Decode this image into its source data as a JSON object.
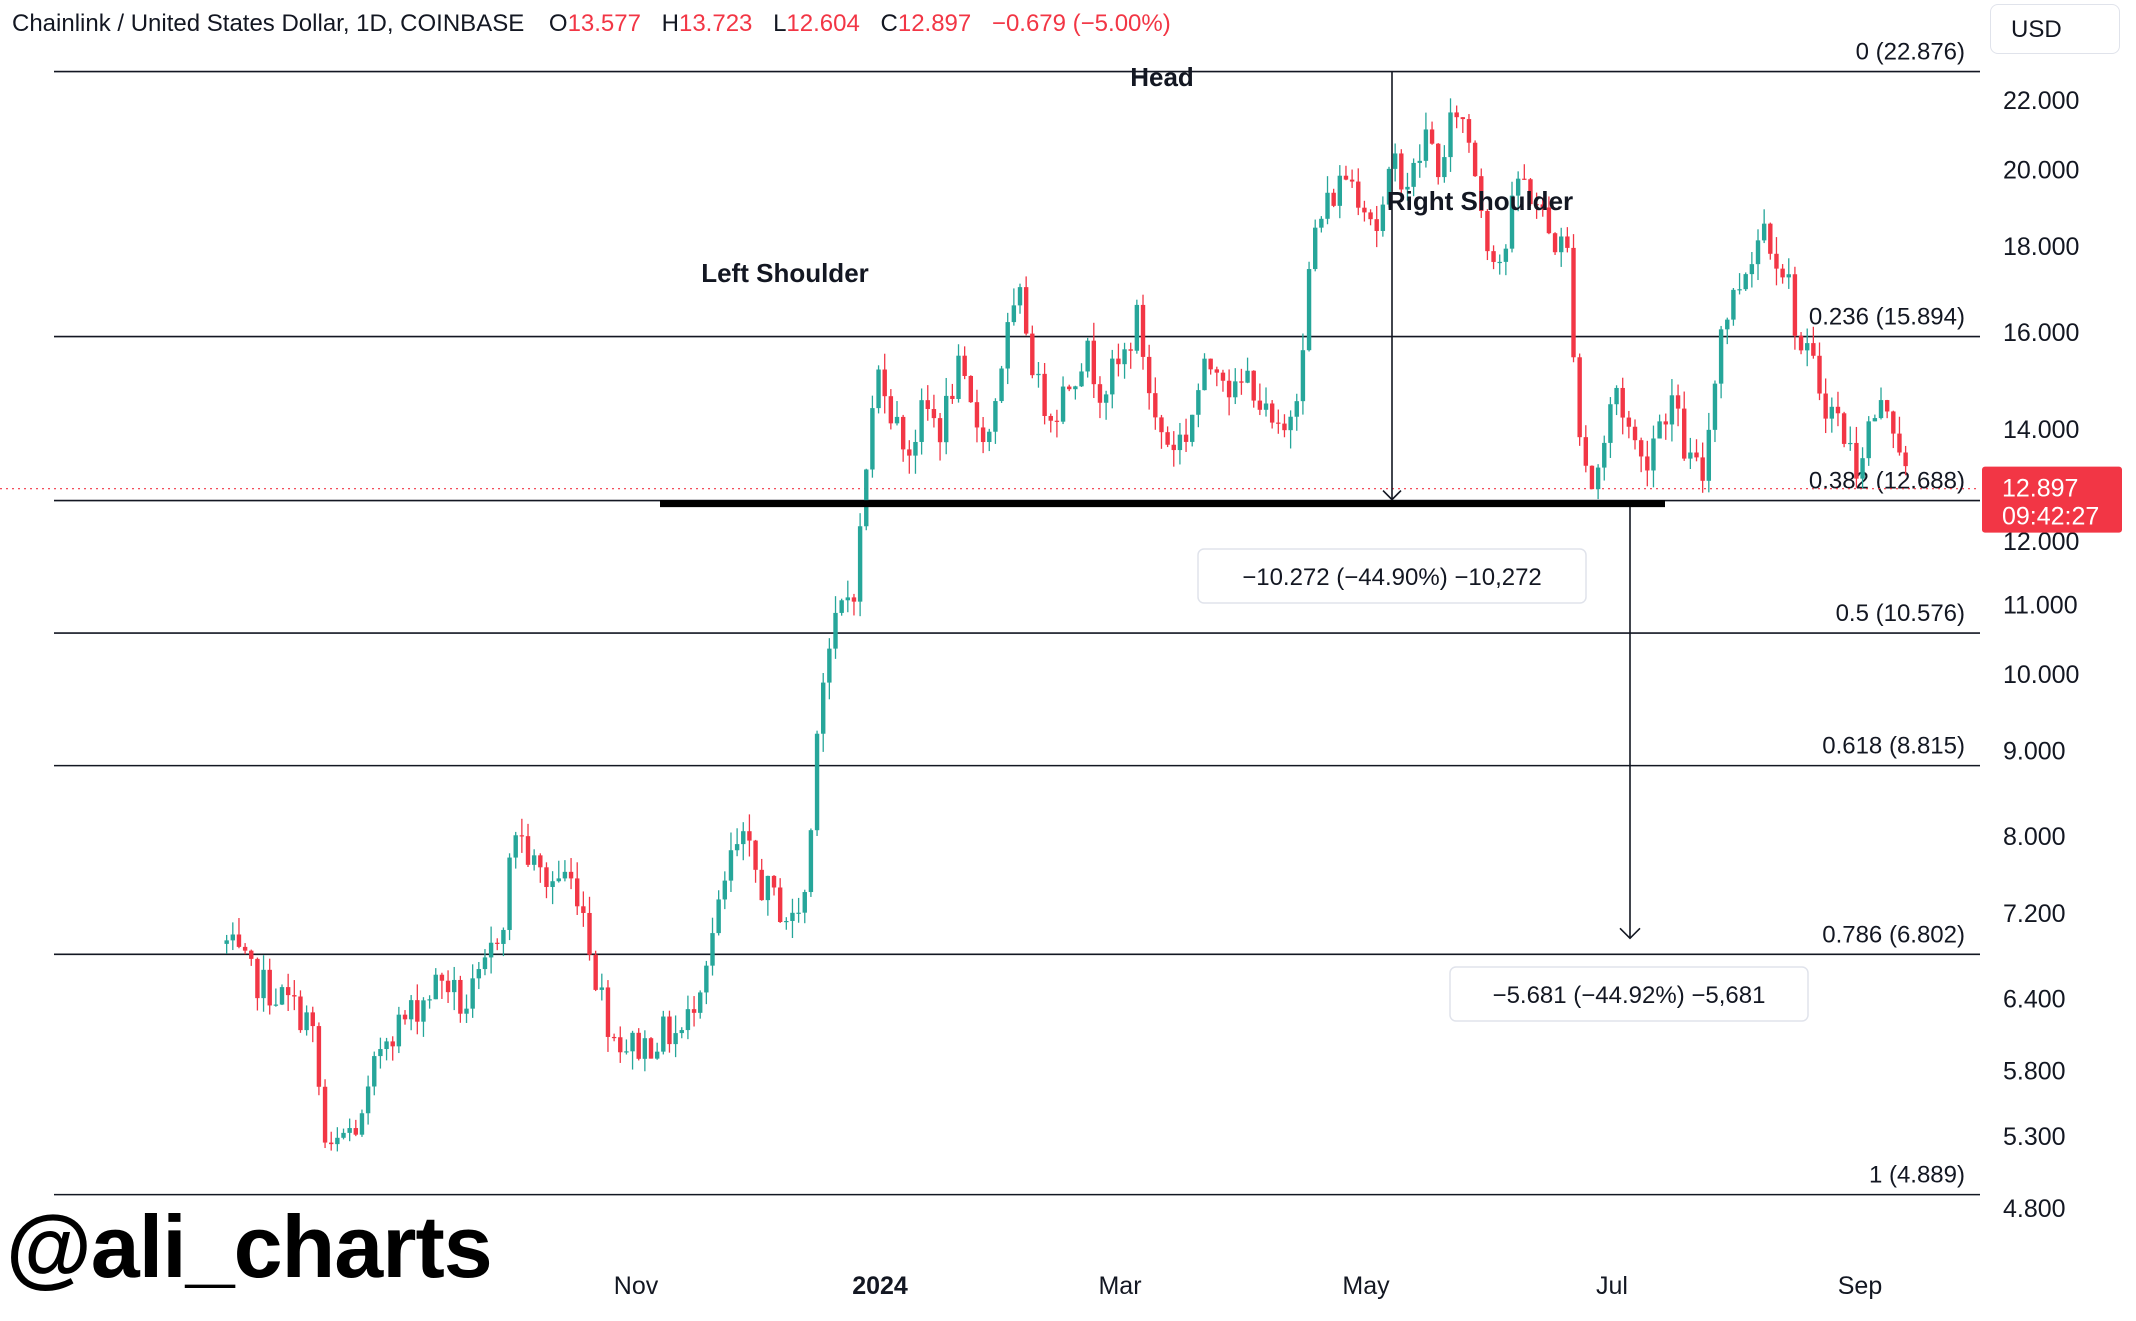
{
  "header": {
    "symbol": "Chainlink / United States Dollar, 1D, COINBASE",
    "open_label": "O",
    "open": "13.577",
    "high_label": "H",
    "high": "13.723",
    "low_label": "L",
    "low": "12.604",
    "close_label": "C",
    "close": "12.897",
    "change": "−0.679 (−5.00%)"
  },
  "currency_button": "USD",
  "watermark": "@ali_charts",
  "colors": {
    "up": "#26a69a",
    "down": "#f23645",
    "line": "#131722",
    "last": "#f23645"
  },
  "chart_data": {
    "type": "candlestick",
    "scale": "log",
    "y_ticks": [
      "22.000",
      "20.000",
      "18.000",
      "16.000",
      "14.000",
      "12.000",
      "11.000",
      "10.000",
      "9.000",
      "8.000",
      "7.200",
      "6.400",
      "5.800",
      "5.300",
      "4.800"
    ],
    "x_ticks": [
      "Nov",
      "2024",
      "Mar",
      "May",
      "Jul",
      "Sep"
    ],
    "last_price": {
      "value": "12.897",
      "timer": "09:42:27"
    },
    "fib_levels": [
      {
        "label": "0 (22.876)",
        "value": 22.876
      },
      {
        "label": "0.236 (15.894)",
        "value": 15.894
      },
      {
        "label": "0.382 (12.688)",
        "value": 12.688
      },
      {
        "label": "0.5 (10.576)",
        "value": 10.576
      },
      {
        "label": "0.618 (8.815)",
        "value": 8.815
      },
      {
        "label": "0.786 (6.802)",
        "value": 6.802
      },
      {
        "label": "1 (4.889)",
        "value": 4.889
      }
    ],
    "annotations": [
      "Head",
      "Left Shoulder",
      "Right Shoulder"
    ],
    "measurements": [
      "−10.272 (−44.90%) −10,272",
      "−5.681 (−44.92%) −5,681"
    ],
    "neckline": 12.688,
    "price_path": [
      [
        "2023-07-22",
        6.9
      ],
      [
        "2023-07-28",
        6.6
      ],
      [
        "2023-08-05",
        6.4
      ],
      [
        "2023-08-12",
        6.2
      ],
      [
        "2023-08-16",
        5.1
      ],
      [
        "2023-08-20",
        5.3
      ],
      [
        "2023-08-25",
        5.4
      ],
      [
        "2023-08-30",
        6.1
      ],
      [
        "2023-09-04",
        6.2
      ],
      [
        "2023-09-09",
        6.4
      ],
      [
        "2023-09-14",
        6.6
      ],
      [
        "2023-09-19",
        6.3
      ],
      [
        "2023-09-24",
        6.6
      ],
      [
        "2023-09-29",
        7.2
      ],
      [
        "2023-10-02",
        8.1
      ],
      [
        "2023-10-06",
        7.7
      ],
      [
        "2023-10-10",
        7.5
      ],
      [
        "2023-10-14",
        7.6
      ],
      [
        "2023-10-18",
        7.4
      ],
      [
        "2023-10-22",
        6.6
      ],
      [
        "2023-10-26",
        6.1
      ],
      [
        "2023-10-30",
        6.0
      ],
      [
        "2023-11-03",
        6.0
      ],
      [
        "2023-11-08",
        6.1
      ],
      [
        "2023-11-13",
        6.1
      ],
      [
        "2023-11-17",
        6.6
      ],
      [
        "2023-11-21",
        7.1
      ],
      [
        "2023-11-25",
        7.8
      ],
      [
        "2023-11-28",
        7.9
      ],
      [
        "2023-12-02",
        7.5
      ],
      [
        "2023-12-06",
        7.3
      ],
      [
        "2023-12-10",
        7.1
      ],
      [
        "2023-12-14",
        7.5
      ],
      [
        "2023-12-16",
        9.4
      ],
      [
        "2023-12-18",
        10.1
      ],
      [
        "2023-12-22",
        10.9
      ],
      [
        "2023-12-26",
        11.4
      ],
      [
        "2023-12-29",
        13.8
      ],
      [
        "2024-01-01",
        15.4
      ],
      [
        "2024-01-04",
        14.2
      ],
      [
        "2024-01-08",
        13.6
      ],
      [
        "2024-01-12",
        14.4
      ],
      [
        "2024-01-16",
        14.0
      ],
      [
        "2024-01-20",
        15.2
      ],
      [
        "2024-01-24",
        14.2
      ],
      [
        "2024-01-28",
        13.9
      ],
      [
        "2024-02-01",
        15.8
      ],
      [
        "2024-02-05",
        16.7
      ],
      [
        "2024-02-09",
        14.8
      ],
      [
        "2024-02-13",
        14.3
      ],
      [
        "2024-02-17",
        15.0
      ],
      [
        "2024-02-21",
        15.6
      ],
      [
        "2024-02-25",
        14.8
      ],
      [
        "2024-03-01",
        15.3
      ],
      [
        "2024-03-05",
        16.3
      ],
      [
        "2024-03-09",
        14.2
      ],
      [
        "2024-03-13",
        13.7
      ],
      [
        "2024-03-17",
        13.9
      ],
      [
        "2024-03-21",
        15.0
      ],
      [
        "2024-03-25",
        15.5
      ],
      [
        "2024-03-29",
        14.6
      ],
      [
        "2024-04-02",
        15.1
      ],
      [
        "2024-04-06",
        14.2
      ],
      [
        "2024-04-10",
        13.7
      ],
      [
        "2024-04-14",
        15.0
      ],
      [
        "2024-04-18",
        18.3
      ],
      [
        "2024-04-22",
        19.2
      ],
      [
        "2024-04-26",
        19.9
      ],
      [
        "2024-04-30",
        19.3
      ],
      [
        "2024-05-04",
        18.4
      ],
      [
        "2024-05-08",
        20.2
      ],
      [
        "2024-05-12",
        19.6
      ],
      [
        "2024-05-16",
        21.0
      ],
      [
        "2024-05-20",
        19.8
      ],
      [
        "2024-05-23",
        21.9
      ],
      [
        "2024-05-27",
        20.7
      ],
      [
        "2024-05-31",
        18.2
      ],
      [
        "2024-06-04",
        17.6
      ],
      [
        "2024-06-08",
        19.8
      ],
      [
        "2024-06-12",
        19.2
      ],
      [
        "2024-06-16",
        18.2
      ],
      [
        "2024-06-20",
        17.9
      ],
      [
        "2024-06-23",
        14.0
      ],
      [
        "2024-06-26",
        12.9
      ],
      [
        "2024-06-29",
        13.6
      ],
      [
        "2024-07-02",
        14.9
      ],
      [
        "2024-07-05",
        14.1
      ],
      [
        "2024-07-09",
        13.3
      ],
      [
        "2024-07-12",
        14.0
      ],
      [
        "2024-07-16",
        14.6
      ],
      [
        "2024-07-20",
        13.4
      ],
      [
        "2024-07-24",
        13.1
      ],
      [
        "2024-07-28",
        16.0
      ],
      [
        "2024-08-01",
        16.9
      ],
      [
        "2024-08-04",
        17.6
      ],
      [
        "2024-08-08",
        18.6
      ],
      [
        "2024-08-11",
        17.9
      ],
      [
        "2024-08-14",
        17.2
      ],
      [
        "2024-08-17",
        15.6
      ],
      [
        "2024-08-20",
        15.3
      ],
      [
        "2024-08-23",
        14.6
      ],
      [
        "2024-08-27",
        14.1
      ],
      [
        "2024-08-31",
        13.3
      ],
      [
        "2024-09-04",
        14.2
      ],
      [
        "2024-09-08",
        14.5
      ],
      [
        "2024-09-11",
        13.7
      ],
      [
        "2024-09-13",
        12.9
      ]
    ]
  }
}
